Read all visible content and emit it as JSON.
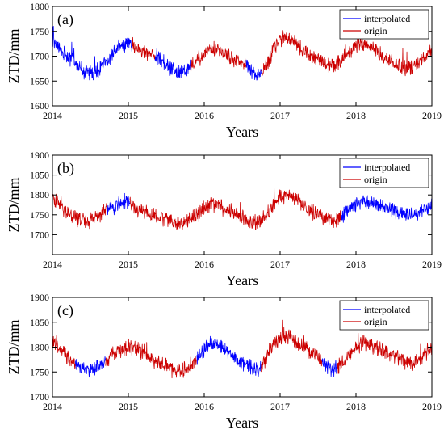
{
  "chart_data": [
    {
      "type": "line",
      "panel_label": "(a)",
      "xlabel": "Years",
      "ylabel": "ZTD/mm",
      "xlim": [
        2014,
        2019
      ],
      "ylim": [
        1600,
        1800
      ],
      "xticks": [
        2014,
        2015,
        2016,
        2017,
        2018,
        2019
      ],
      "yticks": [
        1600,
        1650,
        1700,
        1750,
        1800
      ],
      "legend_position": "top-right",
      "series": [
        {
          "name": "interpolated",
          "color": "#0000ff",
          "segments": [
            [
              [
                2014.0,
                1735
              ],
              [
                2014.1,
                1712
              ],
              [
                2014.2,
                1700
              ],
              [
                2014.3,
                1690
              ],
              [
                2014.4,
                1672
              ],
              [
                2014.5,
                1665
              ],
              [
                2014.6,
                1670
              ],
              [
                2014.7,
                1688
              ],
              [
                2014.8,
                1705
              ],
              [
                2014.9,
                1720
              ],
              [
                2015.0,
                1725
              ],
              [
                2015.05,
                1722
              ]
            ],
            [
              [
                2015.35,
                1702
              ],
              [
                2015.45,
                1690
              ],
              [
                2015.55,
                1676
              ],
              [
                2015.65,
                1668
              ],
              [
                2015.75,
                1672
              ],
              [
                2015.82,
                1680
              ]
            ],
            [
              [
                2016.55,
                1682
              ],
              [
                2016.62,
                1670
              ],
              [
                2016.7,
                1660
              ],
              [
                2016.75,
                1665
              ]
            ]
          ]
        },
        {
          "name": "origin",
          "color": "#cc0000",
          "segments": [
            [
              [
                2015.05,
                1722
              ],
              [
                2015.15,
                1712
              ],
              [
                2015.25,
                1705
              ],
              [
                2015.35,
                1702
              ]
            ],
            [
              [
                2015.82,
                1680
              ],
              [
                2015.9,
                1692
              ],
              [
                2016.0,
                1705
              ],
              [
                2016.1,
                1715
              ],
              [
                2016.2,
                1712
              ],
              [
                2016.3,
                1700
              ],
              [
                2016.4,
                1692
              ],
              [
                2016.5,
                1686
              ],
              [
                2016.55,
                1682
              ]
            ],
            [
              [
                2016.75,
                1665
              ],
              [
                2016.85,
                1690
              ],
              [
                2016.95,
                1722
              ],
              [
                2017.05,
                1740
              ],
              [
                2017.15,
                1735
              ],
              [
                2017.25,
                1720
              ],
              [
                2017.35,
                1705
              ],
              [
                2017.45,
                1695
              ],
              [
                2017.55,
                1688
              ],
              [
                2017.65,
                1680
              ],
              [
                2017.75,
                1685
              ],
              [
                2017.85,
                1700
              ],
              [
                2017.95,
                1715
              ],
              [
                2018.05,
                1725
              ],
              [
                2018.15,
                1722
              ],
              [
                2018.25,
                1712
              ],
              [
                2018.35,
                1700
              ],
              [
                2018.45,
                1690
              ],
              [
                2018.55,
                1682
              ],
              [
                2018.65,
                1675
              ],
              [
                2018.75,
                1680
              ],
              [
                2018.85,
                1692
              ],
              [
                2018.95,
                1705
              ],
              [
                2019.0,
                1712
              ]
            ]
          ]
        }
      ]
    },
    {
      "type": "line",
      "panel_label": "(b)",
      "xlabel": "Years",
      "ylabel": "ZTD/mm",
      "xlim": [
        2014,
        2019
      ],
      "ylim": [
        1650,
        1900
      ],
      "xticks": [
        2014,
        2015,
        2016,
        2017,
        2018,
        2019
      ],
      "yticks": [
        1700,
        1750,
        1800,
        1850,
        1900
      ],
      "legend_position": "top-right",
      "series": [
        {
          "name": "interpolated",
          "color": "#0000ff",
          "segments": [
            [
              [
                2014.72,
                1765
              ],
              [
                2014.8,
                1770
              ],
              [
                2014.88,
                1778
              ],
              [
                2014.95,
                1783
              ],
              [
                2015.02,
                1780
              ]
            ],
            [
              [
                2017.8,
                1745
              ],
              [
                2017.9,
                1762
              ],
              [
                2018.0,
                1778
              ],
              [
                2018.1,
                1785
              ],
              [
                2018.2,
                1782
              ],
              [
                2018.3,
                1775
              ],
              [
                2018.4,
                1768
              ],
              [
                2018.5,
                1760
              ],
              [
                2018.6,
                1752
              ],
              [
                2018.7,
                1748
              ],
              [
                2018.8,
                1755
              ],
              [
                2018.9,
                1765
              ],
              [
                2019.0,
                1772
              ]
            ]
          ]
        },
        {
          "name": "origin",
          "color": "#cc0000",
          "segments": [
            [
              [
                2014.0,
                1795
              ],
              [
                2014.08,
                1778
              ],
              [
                2014.16,
                1762
              ],
              [
                2014.25,
                1750
              ],
              [
                2014.35,
                1738
              ],
              [
                2014.45,
                1730
              ],
              [
                2014.55,
                1740
              ],
              [
                2014.65,
                1755
              ],
              [
                2014.72,
                1765
              ]
            ],
            [
              [
                2015.02,
                1780
              ],
              [
                2015.1,
                1768
              ],
              [
                2015.2,
                1758
              ],
              [
                2015.3,
                1750
              ],
              [
                2015.4,
                1745
              ],
              [
                2015.5,
                1740
              ],
              [
                2015.6,
                1732
              ],
              [
                2015.7,
                1728
              ],
              [
                2015.8,
                1738
              ],
              [
                2015.9,
                1752
              ],
              [
                2016.0,
                1768
              ],
              [
                2016.1,
                1778
              ],
              [
                2016.2,
                1772
              ],
              [
                2016.3,
                1762
              ],
              [
                2016.4,
                1752
              ],
              [
                2016.5,
                1745
              ],
              [
                2016.6,
                1735
              ],
              [
                2016.7,
                1728
              ],
              [
                2016.8,
                1745
              ],
              [
                2016.9,
                1770
              ],
              [
                2017.0,
                1795
              ],
              [
                2017.1,
                1802
              ],
              [
                2017.2,
                1790
              ],
              [
                2017.3,
                1772
              ],
              [
                2017.4,
                1758
              ],
              [
                2017.5,
                1748
              ],
              [
                2017.6,
                1738
              ],
              [
                2017.7,
                1732
              ],
              [
                2017.8,
                1745
              ]
            ]
          ]
        }
      ]
    },
    {
      "type": "line",
      "panel_label": "(c)",
      "xlabel": "Years",
      "ylabel": "ZTD/mm",
      "xlim": [
        2014,
        2019
      ],
      "ylim": [
        1700,
        1900
      ],
      "xticks": [
        2014,
        2015,
        2016,
        2017,
        2018,
        2019
      ],
      "yticks": [
        1700,
        1750,
        1800,
        1850,
        1900
      ],
      "legend_position": "top-right",
      "series": [
        {
          "name": "interpolated",
          "color": "#0000ff",
          "segments": [
            [
              [
                2014.3,
                1765
              ],
              [
                2014.4,
                1758
              ],
              [
                2014.5,
                1752
              ],
              [
                2014.6,
                1760
              ],
              [
                2014.7,
                1772
              ]
            ],
            [
              [
                2015.9,
                1775
              ],
              [
                2016.0,
                1795
              ],
              [
                2016.1,
                1808
              ],
              [
                2016.2,
                1802
              ],
              [
                2016.3,
                1790
              ],
              [
                2016.4,
                1778
              ],
              [
                2016.5,
                1770
              ],
              [
                2016.6,
                1762
              ],
              [
                2016.7,
                1752
              ],
              [
                2016.75,
                1760
              ]
            ],
            [
              [
                2017.55,
                1772
              ],
              [
                2017.6,
                1762
              ],
              [
                2017.68,
                1752
              ],
              [
                2017.75,
                1758
              ]
            ]
          ]
        },
        {
          "name": "origin",
          "color": "#cc0000",
          "segments": [
            [
              [
                2014.0,
                1815
              ],
              [
                2014.1,
                1798
              ],
              [
                2014.2,
                1780
              ],
              [
                2014.3,
                1765
              ]
            ],
            [
              [
                2014.7,
                1772
              ],
              [
                2014.8,
                1785
              ],
              [
                2014.9,
                1795
              ],
              [
                2015.0,
                1800
              ],
              [
                2015.1,
                1796
              ],
              [
                2015.2,
                1788
              ],
              [
                2015.3,
                1778
              ],
              [
                2015.4,
                1770
              ],
              [
                2015.5,
                1762
              ],
              [
                2015.6,
                1755
              ],
              [
                2015.7,
                1752
              ],
              [
                2015.8,
                1762
              ],
              [
                2015.9,
                1775
              ]
            ],
            [
              [
                2016.75,
                1760
              ],
              [
                2016.85,
                1790
              ],
              [
                2016.95,
                1812
              ],
              [
                2017.05,
                1825
              ],
              [
                2017.15,
                1818
              ],
              [
                2017.25,
                1805
              ],
              [
                2017.35,
                1795
              ],
              [
                2017.45,
                1785
              ],
              [
                2017.55,
                1772
              ]
            ],
            [
              [
                2017.75,
                1758
              ],
              [
                2017.85,
                1775
              ],
              [
                2017.95,
                1792
              ],
              [
                2018.05,
                1805
              ],
              [
                2018.15,
                1808
              ],
              [
                2018.25,
                1800
              ],
              [
                2018.35,
                1792
              ],
              [
                2018.45,
                1785
              ],
              [
                2018.55,
                1778
              ],
              [
                2018.65,
                1770
              ],
              [
                2018.75,
                1768
              ],
              [
                2018.85,
                1778
              ],
              [
                2018.95,
                1792
              ],
              [
                2019.0,
                1800
              ]
            ]
          ]
        }
      ]
    }
  ]
}
